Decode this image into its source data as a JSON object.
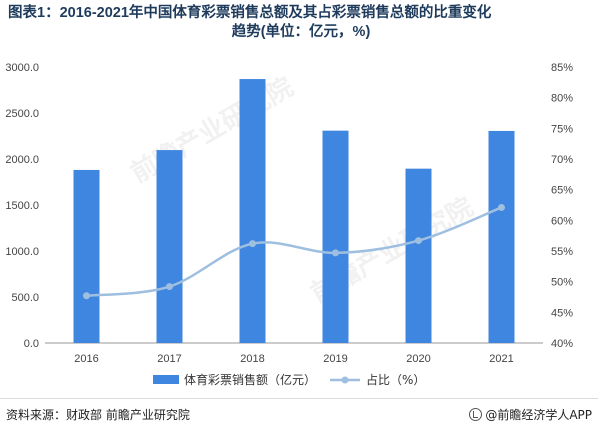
{
  "title_line1": "图表1：2016-2021年中国体育彩票销售总额及其占彩票销售总额的比重变化",
  "title_line2": "趋势(单位：亿元，%)",
  "source": "资料来源：财政部 前瞻产业研究院",
  "brand": "@前瞻经济学人APP",
  "watermark": "前瞻产业研究院",
  "colors": {
    "bar": "#3f86e0",
    "line": "#9ebfe0",
    "title": "#1f3b5c"
  },
  "chart_data": {
    "type": "bar",
    "categories": [
      "2016",
      "2017",
      "2018",
      "2019",
      "2020",
      "2021"
    ],
    "series": [
      {
        "name": "体育彩票销售额（亿元）",
        "type": "bar",
        "axis": "left",
        "values": [
          1881,
          2097,
          2869,
          2308,
          1895,
          2305
        ]
      },
      {
        "name": "占比（%）",
        "type": "line",
        "axis": "right",
        "values": [
          47.7,
          49.2,
          56.2,
          54.7,
          56.7,
          62.1
        ]
      }
    ],
    "y_left": {
      "min": 0,
      "max": 3000,
      "step": 500,
      "ticks": [
        "0.0",
        "500.0",
        "1000.0",
        "1500.0",
        "2000.0",
        "2500.0",
        "3000.0"
      ]
    },
    "y_right": {
      "min": 40,
      "max": 85,
      "step": 5,
      "ticks": [
        "40%",
        "45%",
        "50%",
        "55%",
        "60%",
        "65%",
        "70%",
        "75%",
        "80%",
        "85%"
      ]
    },
    "grid": false,
    "legend": "bottom"
  }
}
